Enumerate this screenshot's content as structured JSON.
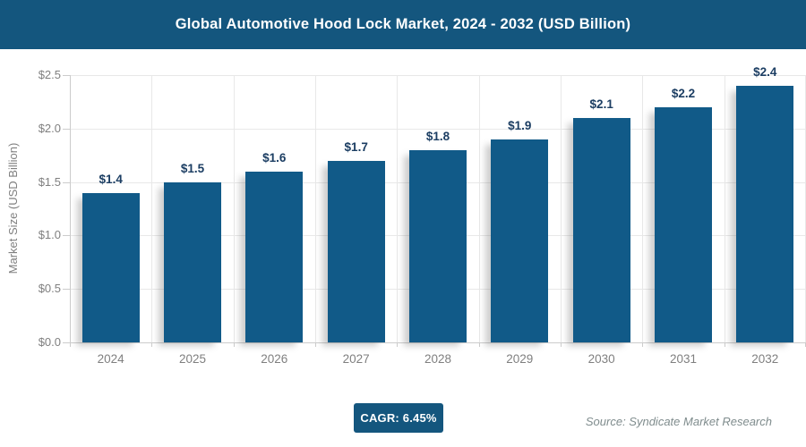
{
  "header": {
    "title": "Global Automotive Hood Lock Market, 2024 - 2032 (USD Billion)"
  },
  "chart_data": {
    "type": "bar",
    "title": "Global Automotive Hood Lock Market, 2024 - 2032 (USD Billion)",
    "categories": [
      "2024",
      "2025",
      "2026",
      "2027",
      "2028",
      "2029",
      "2030",
      "2031",
      "2032"
    ],
    "values": [
      1.4,
      1.5,
      1.6,
      1.7,
      1.8,
      1.9,
      2.1,
      2.2,
      2.4
    ],
    "bar_labels": [
      "$1.4",
      "$1.5",
      "$1.6",
      "$1.7",
      "$1.8",
      "$1.9",
      "$2.1",
      "$2.2",
      "$2.4"
    ],
    "xlabel": "",
    "ylabel": "Market Size (USD Billion)",
    "ylim": [
      0,
      2.5
    ],
    "yticks": [
      {
        "value": 0.0,
        "label": "$0.0"
      },
      {
        "value": 0.5,
        "label": "$0.5"
      },
      {
        "value": 1.0,
        "label": "$1.0"
      },
      {
        "value": 1.5,
        "label": "$1.5"
      },
      {
        "value": 2.0,
        "label": "$2.0"
      },
      {
        "value": 2.5,
        "label": "$2.5"
      }
    ],
    "grid": true,
    "legend": false
  },
  "footer": {
    "cagr_label": "CAGR: 6.45%",
    "source": "Source: Syndicate Market Research"
  },
  "colors": {
    "banner": "#14567e",
    "title_text": "#ffffff",
    "bar": "#115a88",
    "dlabel": "#1c3e63",
    "axis_text": "#7f7f7f",
    "grid": "#e8e8e8",
    "axis_line": "#cccccc",
    "badge_bg": "#14567e",
    "badge_text": "#ffffff",
    "source_text": "#7f8c8d"
  }
}
